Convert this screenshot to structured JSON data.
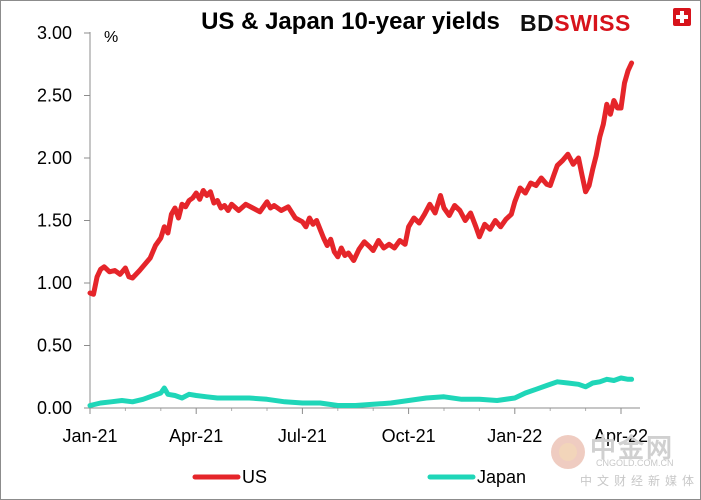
{
  "chart_data": {
    "type": "line",
    "title": "US & Japan 10-year yields",
    "ylabel": "%",
    "ylim": [
      0,
      3
    ],
    "yticks": [
      "0.00",
      "0.50",
      "1.00",
      "1.50",
      "2.00",
      "2.50",
      "3.00"
    ],
    "xticks": [
      "Jan-21",
      "Apr-21",
      "Jul-21",
      "Oct-21",
      "Jan-22",
      "Apr-22"
    ],
    "x_range_months": [
      0,
      16.2
    ],
    "series": [
      {
        "name": "US",
        "color": "#e5252a",
        "points": [
          [
            0.0,
            0.92
          ],
          [
            0.1,
            0.91
          ],
          [
            0.2,
            1.05
          ],
          [
            0.3,
            1.11
          ],
          [
            0.4,
            1.13
          ],
          [
            0.55,
            1.09
          ],
          [
            0.7,
            1.1
          ],
          [
            0.85,
            1.07
          ],
          [
            1.0,
            1.12
          ],
          [
            1.1,
            1.05
          ],
          [
            1.2,
            1.04
          ],
          [
            1.4,
            1.1
          ],
          [
            1.55,
            1.15
          ],
          [
            1.7,
            1.2
          ],
          [
            1.85,
            1.3
          ],
          [
            2.0,
            1.36
          ],
          [
            2.1,
            1.45
          ],
          [
            2.2,
            1.4
          ],
          [
            2.3,
            1.55
          ],
          [
            2.4,
            1.6
          ],
          [
            2.5,
            1.52
          ],
          [
            2.6,
            1.63
          ],
          [
            2.7,
            1.61
          ],
          [
            2.8,
            1.66
          ],
          [
            2.9,
            1.68
          ],
          [
            3.0,
            1.72
          ],
          [
            3.1,
            1.67
          ],
          [
            3.2,
            1.74
          ],
          [
            3.3,
            1.7
          ],
          [
            3.4,
            1.73
          ],
          [
            3.5,
            1.64
          ],
          [
            3.6,
            1.66
          ],
          [
            3.7,
            1.6
          ],
          [
            3.8,
            1.62
          ],
          [
            3.9,
            1.58
          ],
          [
            4.0,
            1.63
          ],
          [
            4.2,
            1.58
          ],
          [
            4.4,
            1.63
          ],
          [
            4.6,
            1.6
          ],
          [
            4.8,
            1.57
          ],
          [
            5.0,
            1.65
          ],
          [
            5.1,
            1.6
          ],
          [
            5.2,
            1.62
          ],
          [
            5.4,
            1.58
          ],
          [
            5.6,
            1.61
          ],
          [
            5.8,
            1.52
          ],
          [
            6.0,
            1.49
          ],
          [
            6.1,
            1.45
          ],
          [
            6.2,
            1.52
          ],
          [
            6.3,
            1.47
          ],
          [
            6.4,
            1.5
          ],
          [
            6.5,
            1.43
          ],
          [
            6.6,
            1.36
          ],
          [
            6.7,
            1.3
          ],
          [
            6.8,
            1.35
          ],
          [
            6.9,
            1.25
          ],
          [
            7.0,
            1.21
          ],
          [
            7.1,
            1.28
          ],
          [
            7.2,
            1.22
          ],
          [
            7.3,
            1.24
          ],
          [
            7.45,
            1.18
          ],
          [
            7.6,
            1.27
          ],
          [
            7.75,
            1.33
          ],
          [
            7.9,
            1.29
          ],
          [
            8.0,
            1.26
          ],
          [
            8.15,
            1.34
          ],
          [
            8.3,
            1.28
          ],
          [
            8.45,
            1.31
          ],
          [
            8.6,
            1.28
          ],
          [
            8.75,
            1.34
          ],
          [
            8.9,
            1.31
          ],
          [
            9.0,
            1.45
          ],
          [
            9.15,
            1.52
          ],
          [
            9.3,
            1.48
          ],
          [
            9.45,
            1.55
          ],
          [
            9.6,
            1.63
          ],
          [
            9.75,
            1.56
          ],
          [
            9.9,
            1.7
          ],
          [
            10.0,
            1.6
          ],
          [
            10.15,
            1.54
          ],
          [
            10.3,
            1.62
          ],
          [
            10.45,
            1.58
          ],
          [
            10.6,
            1.5
          ],
          [
            10.75,
            1.56
          ],
          [
            10.9,
            1.45
          ],
          [
            11.0,
            1.37
          ],
          [
            11.15,
            1.47
          ],
          [
            11.3,
            1.43
          ],
          [
            11.45,
            1.5
          ],
          [
            11.6,
            1.45
          ],
          [
            11.75,
            1.51
          ],
          [
            11.9,
            1.55
          ],
          [
            12.0,
            1.65
          ],
          [
            12.15,
            1.76
          ],
          [
            12.3,
            1.72
          ],
          [
            12.45,
            1.8
          ],
          [
            12.6,
            1.78
          ],
          [
            12.75,
            1.84
          ],
          [
            12.9,
            1.79
          ],
          [
            13.0,
            1.78
          ],
          [
            13.1,
            1.86
          ],
          [
            13.2,
            1.94
          ],
          [
            13.35,
            1.98
          ],
          [
            13.5,
            2.03
          ],
          [
            13.65,
            1.95
          ],
          [
            13.8,
            2.0
          ],
          [
            13.9,
            1.86
          ],
          [
            14.0,
            1.73
          ],
          [
            14.1,
            1.78
          ],
          [
            14.2,
            1.91
          ],
          [
            14.3,
            2.02
          ],
          [
            14.4,
            2.17
          ],
          [
            14.5,
            2.27
          ],
          [
            14.6,
            2.43
          ],
          [
            14.7,
            2.35
          ],
          [
            14.8,
            2.46
          ],
          [
            14.9,
            2.4
          ],
          [
            15.0,
            2.4
          ],
          [
            15.1,
            2.6
          ],
          [
            15.2,
            2.7
          ],
          [
            15.3,
            2.76
          ]
        ]
      },
      {
        "name": "Japan",
        "color": "#1fd6b8",
        "points": [
          [
            0.0,
            0.02
          ],
          [
            0.3,
            0.04
          ],
          [
            0.6,
            0.05
          ],
          [
            0.9,
            0.06
          ],
          [
            1.2,
            0.05
          ],
          [
            1.5,
            0.07
          ],
          [
            1.8,
            0.1
          ],
          [
            2.0,
            0.12
          ],
          [
            2.1,
            0.16
          ],
          [
            2.2,
            0.11
          ],
          [
            2.4,
            0.1
          ],
          [
            2.6,
            0.08
          ],
          [
            2.8,
            0.11
          ],
          [
            3.0,
            0.1
          ],
          [
            3.3,
            0.09
          ],
          [
            3.6,
            0.08
          ],
          [
            4.0,
            0.08
          ],
          [
            4.5,
            0.08
          ],
          [
            5.0,
            0.07
          ],
          [
            5.5,
            0.05
          ],
          [
            6.0,
            0.04
          ],
          [
            6.5,
            0.04
          ],
          [
            7.0,
            0.02
          ],
          [
            7.5,
            0.02
          ],
          [
            8.0,
            0.03
          ],
          [
            8.5,
            0.04
          ],
          [
            9.0,
            0.06
          ],
          [
            9.5,
            0.08
          ],
          [
            10.0,
            0.09
          ],
          [
            10.5,
            0.07
          ],
          [
            11.0,
            0.07
          ],
          [
            11.5,
            0.06
          ],
          [
            12.0,
            0.08
          ],
          [
            12.3,
            0.12
          ],
          [
            12.6,
            0.15
          ],
          [
            12.9,
            0.18
          ],
          [
            13.2,
            0.21
          ],
          [
            13.5,
            0.2
          ],
          [
            13.8,
            0.19
          ],
          [
            14.0,
            0.17
          ],
          [
            14.2,
            0.2
          ],
          [
            14.4,
            0.21
          ],
          [
            14.6,
            0.23
          ],
          [
            14.8,
            0.22
          ],
          [
            15.0,
            0.24
          ],
          [
            15.2,
            0.23
          ],
          [
            15.3,
            0.23
          ]
        ]
      }
    ],
    "legend": {
      "position": "bottom",
      "entries": [
        "US",
        "Japan"
      ]
    }
  },
  "brand": {
    "bd": "BD",
    "swiss": "SWISS"
  },
  "watermark": {
    "name": "中金网",
    "url": "CNGOLD.COM.CN",
    "subtitle": "中文财经新媒体"
  }
}
